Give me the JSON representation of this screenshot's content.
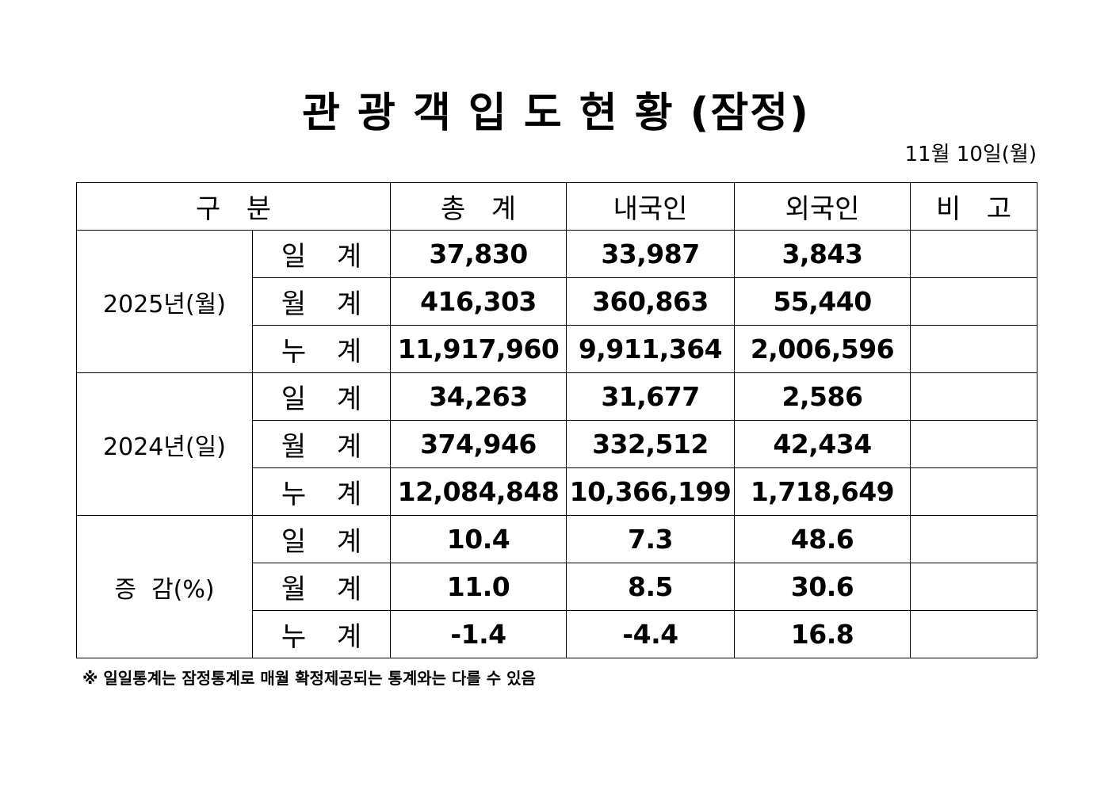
{
  "title": "관 광 객 입 도 현 황 (잠정)",
  "date": "11월 10일(월)",
  "headers": {
    "category": "구   분",
    "total": "총   계",
    "domestic": "내국인",
    "foreign": "외국인",
    "remarks": "비   고"
  },
  "groups": [
    {
      "label": "2025년(월)",
      "rows": [
        {
          "sub": "일 계",
          "total": "37,830",
          "domestic": "33,987",
          "foreign": "3,843",
          "remarks": ""
        },
        {
          "sub": "월 계",
          "total": "416,303",
          "domestic": "360,863",
          "foreign": "55,440",
          "remarks": ""
        },
        {
          "sub": "누 계",
          "total": "11,917,960",
          "domestic": "9,911,364",
          "foreign": "2,006,596",
          "remarks": ""
        }
      ]
    },
    {
      "label": "2024년(일)",
      "rows": [
        {
          "sub": "일 계",
          "total": "34,263",
          "domestic": "31,677",
          "foreign": "2,586",
          "remarks": ""
        },
        {
          "sub": "월 계",
          "total": "374,946",
          "domestic": "332,512",
          "foreign": "42,434",
          "remarks": ""
        },
        {
          "sub": "누 계",
          "total": "12,084,848",
          "domestic": "10,366,199",
          "foreign": "1,718,649",
          "remarks": ""
        }
      ]
    },
    {
      "label": "증  감(%)",
      "rows": [
        {
          "sub": "일 계",
          "total": "10.4",
          "domestic": "7.3",
          "foreign": "48.6",
          "remarks": ""
        },
        {
          "sub": "월 계",
          "total": "11.0",
          "domestic": "8.5",
          "foreign": "30.6",
          "remarks": ""
        },
        {
          "sub": "누 계",
          "total": "-1.4",
          "domestic": "-4.4",
          "foreign": "16.8",
          "remarks": ""
        }
      ]
    }
  ],
  "note": "※ 일일통계는 잠정통계로 매월 확정제공되는 통계와는 다를 수 있음"
}
